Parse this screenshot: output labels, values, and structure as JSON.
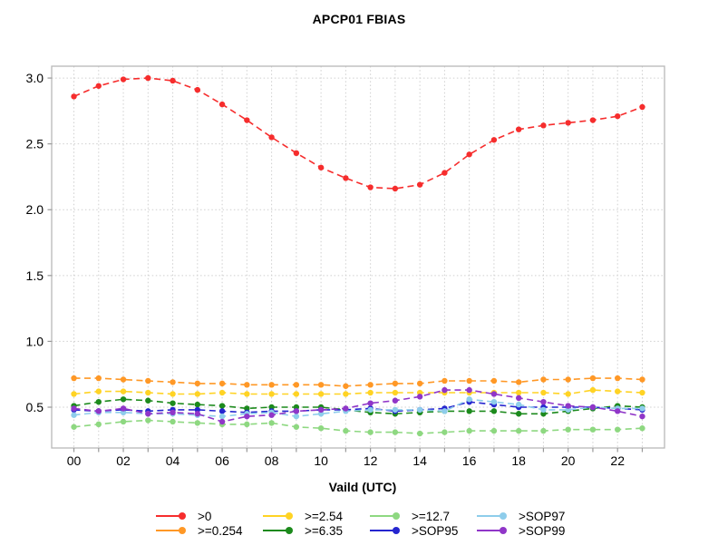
{
  "chart_data": {
    "type": "line",
    "title": "APCP01 FBIAS",
    "xlabel": "Vaild (UTC)",
    "ylabel": "",
    "x_hours": [
      0,
      1,
      2,
      3,
      4,
      5,
      6,
      7,
      8,
      9,
      10,
      11,
      12,
      13,
      14,
      15,
      16,
      17,
      18,
      19,
      20,
      21,
      22,
      23
    ],
    "x_tick_labels": [
      "00",
      "02",
      "04",
      "06",
      "08",
      "10",
      "12",
      "14",
      "16",
      "18",
      "20",
      "22"
    ],
    "x_labeled_hours": [
      0,
      2,
      4,
      6,
      8,
      10,
      12,
      14,
      16,
      18,
      20,
      22
    ],
    "y_ticks": [
      0.5,
      1.0,
      1.5,
      2.0,
      2.5,
      3.0
    ],
    "y_tick_labels": [
      "0.5",
      "1.0",
      "1.5",
      "2.0",
      "2.5",
      "3.0"
    ],
    "xlim": [
      -0.9,
      23.9
    ],
    "ylim": [
      0.19,
      3.09
    ],
    "grid": "dotted gridlines: vertical every hour, horizontal every 0.5",
    "line_style": "dashed with round point markers",
    "legend_position": "bottom, 4 columns x 2 rows",
    "legend_rows": [
      [
        ">0",
        ">=2.54",
        ">=12.7",
        ">SOP97"
      ],
      [
        ">=0.254",
        ">=6.35",
        ">SOP95",
        ">SOP99"
      ]
    ],
    "series": [
      {
        "name": ">0",
        "color": "#f62d2d",
        "values": [
          2.86,
          2.94,
          2.99,
          3.0,
          2.98,
          2.91,
          2.8,
          2.68,
          2.55,
          2.43,
          2.32,
          2.24,
          2.17,
          2.16,
          2.19,
          2.28,
          2.42,
          2.53,
          2.61,
          2.64,
          2.66,
          2.68,
          2.71,
          2.78
        ]
      },
      {
        "name": ">=0.254",
        "color": "#ff9826",
        "values": [
          0.72,
          0.72,
          0.71,
          0.7,
          0.69,
          0.68,
          0.68,
          0.67,
          0.67,
          0.67,
          0.67,
          0.66,
          0.67,
          0.68,
          0.68,
          0.7,
          0.7,
          0.7,
          0.69,
          0.71,
          0.71,
          0.72,
          0.72,
          0.71
        ]
      },
      {
        "name": ">=2.54",
        "color": "#ffd324",
        "values": [
          0.6,
          0.62,
          0.62,
          0.61,
          0.6,
          0.6,
          0.61,
          0.6,
          0.6,
          0.6,
          0.6,
          0.6,
          0.61,
          0.61,
          0.61,
          0.61,
          0.61,
          0.61,
          0.61,
          0.61,
          0.6,
          0.63,
          0.62,
          0.61
        ]
      },
      {
        "name": ">=6.35",
        "color": "#1c8a1c",
        "values": [
          0.51,
          0.54,
          0.56,
          0.55,
          0.53,
          0.52,
          0.51,
          0.49,
          0.5,
          0.5,
          0.5,
          0.48,
          0.46,
          0.45,
          0.46,
          0.47,
          0.47,
          0.47,
          0.45,
          0.45,
          0.47,
          0.49,
          0.51,
          0.5
        ]
      },
      {
        "name": ">=12.7",
        "color": "#8ed881",
        "values": [
          0.35,
          0.37,
          0.39,
          0.4,
          0.39,
          0.38,
          0.37,
          0.37,
          0.38,
          0.35,
          0.34,
          0.32,
          0.31,
          0.31,
          0.3,
          0.31,
          0.32,
          0.32,
          0.32,
          0.32,
          0.33,
          0.33,
          0.33,
          0.34
        ]
      },
      {
        "name": ">SOP95",
        "color": "#2525cf",
        "values": [
          0.48,
          0.47,
          0.48,
          0.47,
          0.48,
          0.48,
          0.47,
          0.46,
          0.47,
          0.47,
          0.48,
          0.48,
          0.49,
          0.47,
          0.48,
          0.49,
          0.54,
          0.52,
          0.5,
          0.5,
          0.5,
          0.5,
          0.49,
          0.48
        ]
      },
      {
        "name": ">SOP97",
        "color": "#8ecdeb",
        "values": [
          0.44,
          0.46,
          0.46,
          0.45,
          0.45,
          0.44,
          0.43,
          0.45,
          0.46,
          0.43,
          0.45,
          0.47,
          0.48,
          0.48,
          0.48,
          0.47,
          0.56,
          0.54,
          0.52,
          0.48,
          0.48,
          0.5,
          0.49,
          0.49
        ]
      },
      {
        "name": ">SOP99",
        "color": "#9036c8",
        "values": [
          0.49,
          0.47,
          0.49,
          0.45,
          0.46,
          0.45,
          0.39,
          0.43,
          0.44,
          0.47,
          0.48,
          0.49,
          0.53,
          0.55,
          0.58,
          0.63,
          0.63,
          0.6,
          0.57,
          0.54,
          0.51,
          0.5,
          0.47,
          0.43
        ]
      }
    ],
    "colors": {
      "grid": "#cfcfcf",
      "spine": "#b8b8b8",
      "tick": "#999999",
      "text": "#000000"
    }
  }
}
